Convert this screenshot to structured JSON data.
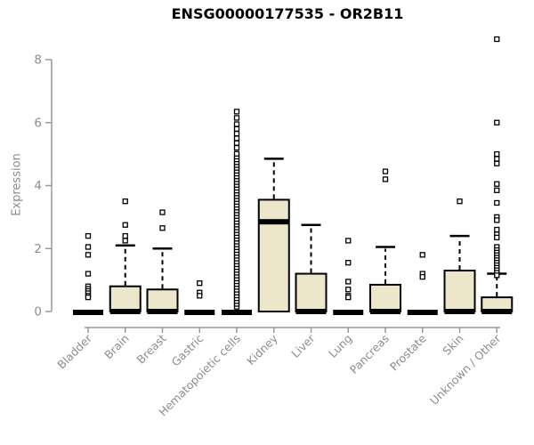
{
  "colors": {
    "background": "#ffffff",
    "box_fill": "#ece6cb",
    "box_stroke": "#000000",
    "median": "#000000",
    "whisker": "#000000",
    "outlier_fill": "#ffffff",
    "outlier_stroke": "#000000",
    "axis_line": "#999999",
    "axis_text": "#8c8c8c",
    "title_text": "#000000"
  },
  "chart_data": {
    "type": "boxplot",
    "title": "ENSG00000177535 - OR2B11",
    "ylabel": "Expression",
    "xlabel": "",
    "ylim": [
      0,
      8.7
    ],
    "yticks": [
      0,
      2,
      4,
      6,
      8
    ],
    "grid": false,
    "legend": null,
    "categories": [
      "Bladder",
      "Brain",
      "Breast",
      "Gastric",
      "Hematopoietic cells",
      "Kidney",
      "Liver",
      "Lung",
      "Pancreas",
      "Prostate",
      "Skin",
      "Unknown / Other"
    ],
    "series": [
      {
        "category": "Bladder",
        "q1": 0,
        "median": 0,
        "q3": 0,
        "whisker_low": 0,
        "whisker_high": 0,
        "outliers": [
          2.4,
          2.05,
          1.8,
          1.2,
          0.8,
          0.72,
          0.65,
          0.58,
          0.5,
          0.45
        ]
      },
      {
        "category": "Brain",
        "q1": 0,
        "median": 0,
        "q3": 0.8,
        "whisker_low": 0,
        "whisker_high": 2.1,
        "outliers": [
          3.5,
          2.75,
          2.4,
          2.25
        ]
      },
      {
        "category": "Breast",
        "q1": 0,
        "median": 0,
        "q3": 0.7,
        "whisker_low": 0,
        "whisker_high": 2.0,
        "outliers": [
          3.15,
          2.65
        ]
      },
      {
        "category": "Gastric",
        "q1": 0,
        "median": 0,
        "q3": 0,
        "whisker_low": 0,
        "whisker_high": 0,
        "outliers": [
          0.9,
          0.6,
          0.5
        ]
      },
      {
        "category": "Hematopoietic cells",
        "q1": 0,
        "median": 0,
        "q3": 0,
        "whisker_low": 0,
        "whisker_high": 0,
        "outliers": [
          0.15,
          0.24,
          0.33,
          0.42,
          0.51,
          0.6,
          0.69,
          0.78,
          0.87,
          0.96,
          1.05,
          1.14,
          1.23,
          1.32,
          1.41,
          1.5,
          1.59,
          1.68,
          1.77,
          1.86,
          1.95,
          2.04,
          2.13,
          2.22,
          2.31,
          2.4,
          2.49,
          2.58,
          2.67,
          2.76,
          2.85,
          2.94,
          3.03,
          3.12,
          3.21,
          3.3,
          3.39,
          3.48,
          3.57,
          3.66,
          3.75,
          3.84,
          3.93,
          4.02,
          4.11,
          4.2,
          4.29,
          4.38,
          4.47,
          4.56,
          4.65,
          4.74,
          4.83,
          4.92,
          5.01,
          5.2,
          5.35,
          5.5,
          5.65,
          5.8,
          5.95,
          6.15,
          6.35
        ]
      },
      {
        "category": "Kidney",
        "q1": 0,
        "median": 2.85,
        "q3": 3.55,
        "whisker_low": 0,
        "whisker_high": 4.85,
        "outliers": []
      },
      {
        "category": "Liver",
        "q1": 0,
        "median": 0,
        "q3": 1.2,
        "whisker_low": 0,
        "whisker_high": 2.75,
        "outliers": []
      },
      {
        "category": "Lung",
        "q1": 0,
        "median": 0,
        "q3": 0,
        "whisker_low": 0,
        "whisker_high": 0,
        "outliers": [
          2.25,
          1.55,
          0.95,
          0.7,
          0.5,
          0.45
        ]
      },
      {
        "category": "Pancreas",
        "q1": 0,
        "median": 0,
        "q3": 0.85,
        "whisker_low": 0,
        "whisker_high": 2.05,
        "outliers": [
          4.45,
          4.2
        ]
      },
      {
        "category": "Prostate",
        "q1": 0,
        "median": 0,
        "q3": 0,
        "whisker_low": 0,
        "whisker_high": 0,
        "outliers": [
          1.8,
          1.2,
          1.1
        ]
      },
      {
        "category": "Skin",
        "q1": 0,
        "median": 0,
        "q3": 1.3,
        "whisker_low": 0,
        "whisker_high": 2.4,
        "outliers": [
          3.5
        ]
      },
      {
        "category": "Unknown / Other",
        "q1": 0,
        "median": 0,
        "q3": 0.45,
        "whisker_low": 0,
        "whisker_high": 1.2,
        "outliers": [
          8.65,
          6.0,
          5.0,
          4.85,
          4.7,
          4.05,
          3.85,
          3.45,
          3.0,
          2.9,
          2.6,
          2.45,
          2.35,
          2.05,
          1.95,
          1.87,
          1.79,
          1.71,
          1.63,
          1.55,
          1.47,
          1.39,
          1.31,
          1.23,
          1.15
        ]
      }
    ]
  }
}
